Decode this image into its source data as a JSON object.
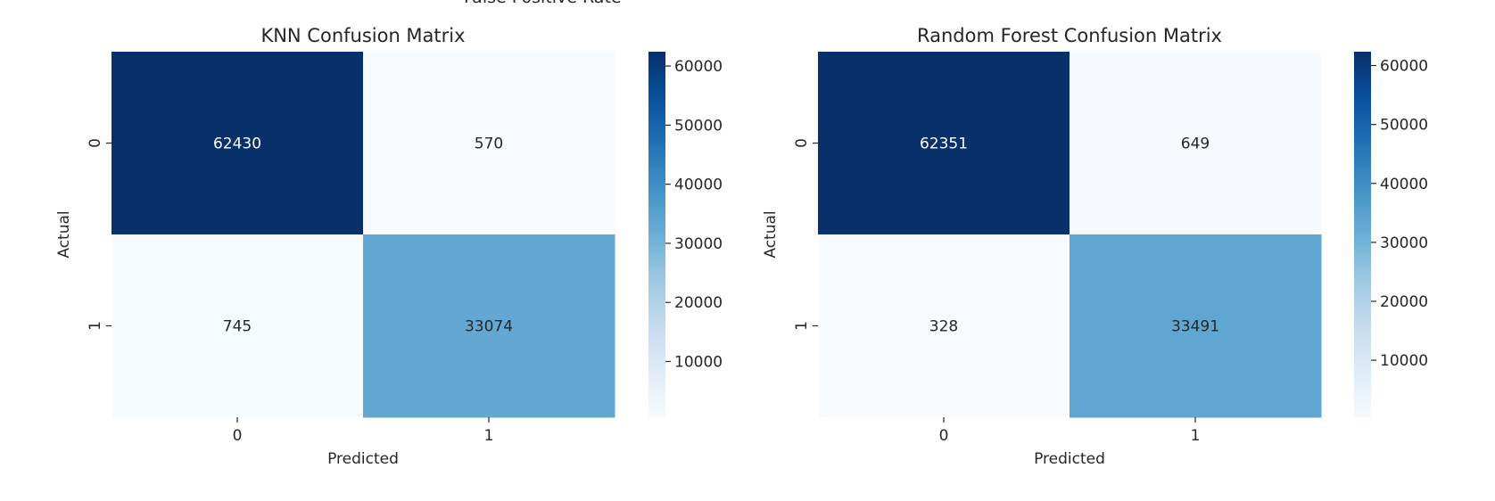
{
  "figure": {
    "cut_off_title": "False Positive Rate"
  },
  "chart_data": [
    {
      "type": "heatmap",
      "title": "KNN Confusion Matrix",
      "xlabel": "Predicted",
      "ylabel": "Actual",
      "x_categories": [
        "0",
        "1"
      ],
      "y_categories": [
        "0",
        "1"
      ],
      "values": [
        [
          62430,
          570
        ],
        [
          745,
          33074
        ]
      ],
      "colormap": "Blues",
      "colorbar": {
        "ticks": [
          10000,
          20000,
          30000,
          40000,
          50000,
          60000
        ],
        "range": [
          570,
          62430
        ]
      }
    },
    {
      "type": "heatmap",
      "title": "Random Forest Confusion Matrix",
      "xlabel": "Predicted",
      "ylabel": "Actual",
      "x_categories": [
        "0",
        "1"
      ],
      "y_categories": [
        "0",
        "1"
      ],
      "values": [
        [
          62351,
          649
        ],
        [
          328,
          33491
        ]
      ],
      "colormap": "Blues",
      "colorbar": {
        "ticks": [
          10000,
          20000,
          30000,
          40000,
          50000,
          60000
        ],
        "range": [
          328,
          62351
        ]
      }
    }
  ]
}
